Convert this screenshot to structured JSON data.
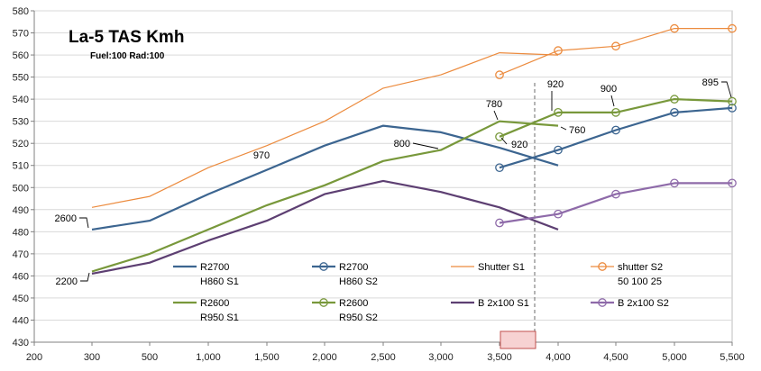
{
  "chart_data": {
    "type": "line",
    "title": "La-5 TAS Kmh",
    "subtitle": "Fuel:100 Rad:100",
    "xlabel": "",
    "ylabel": "",
    "xlim": [
      200,
      5500
    ],
    "ylim": [
      430,
      580
    ],
    "x_ticks": [
      200,
      300,
      500,
      1000,
      1500,
      2000,
      2500,
      3000,
      3500,
      4000,
      4500,
      5000,
      5500
    ],
    "x_tick_labels": [
      "200",
      "300",
      "500",
      "1,000",
      "1,500",
      "2,000",
      "2,500",
      "3,000",
      "3,500",
      "4,000",
      "4,500",
      "5,000",
      "5,500"
    ],
    "y_ticks": [
      430,
      440,
      450,
      460,
      470,
      480,
      490,
      500,
      510,
      520,
      530,
      540,
      550,
      560,
      570,
      580
    ],
    "grid": true,
    "marker_line_x": 3800,
    "series": [
      {
        "name": "R2700\nH860 S1",
        "color": "#3c6590",
        "width": 2.2,
        "marker": false,
        "points": [
          [
            300,
            481
          ],
          [
            500,
            485
          ],
          [
            1000,
            497
          ],
          [
            1500,
            508
          ],
          [
            2000,
            519
          ],
          [
            2500,
            528
          ],
          [
            3000,
            525
          ],
          [
            3500,
            518
          ],
          [
            4000,
            510
          ]
        ]
      },
      {
        "name": "R2700\nH860 S2",
        "color": "#3c6590",
        "width": 2.2,
        "marker": true,
        "points": [
          [
            3500,
            509
          ],
          [
            4000,
            517
          ],
          [
            4500,
            526
          ],
          [
            5000,
            534
          ],
          [
            5500,
            536
          ]
        ]
      },
      {
        "name": "Shutter S1",
        "color": "#ec8b3e",
        "width": 1.2,
        "marker": false,
        "points": [
          [
            300,
            491
          ],
          [
            500,
            496
          ],
          [
            1000,
            509
          ],
          [
            1500,
            519
          ],
          [
            2000,
            530
          ],
          [
            2500,
            545
          ],
          [
            3000,
            551
          ],
          [
            3500,
            561
          ],
          [
            4000,
            560
          ]
        ]
      },
      {
        "name": "shutter S2\n50 100 25",
        "color": "#ec8b3e",
        "width": 1.2,
        "marker": true,
        "points": [
          [
            3500,
            551
          ],
          [
            4000,
            562
          ],
          [
            4500,
            564
          ],
          [
            5000,
            572
          ],
          [
            5500,
            572
          ]
        ]
      },
      {
        "name": "R2600\nR950 S1",
        "color": "#78983b",
        "width": 2.2,
        "marker": false,
        "points": [
          [
            300,
            462
          ],
          [
            500,
            470
          ],
          [
            1000,
            481
          ],
          [
            1500,
            492
          ],
          [
            2000,
            501
          ],
          [
            2500,
            512
          ],
          [
            3000,
            517
          ],
          [
            3500,
            530
          ],
          [
            4000,
            528
          ]
        ]
      },
      {
        "name": "R2600\nR950 S2",
        "color": "#78983b",
        "width": 2.2,
        "marker": true,
        "points": [
          [
            3500,
            523
          ],
          [
            4000,
            534
          ],
          [
            4500,
            534
          ],
          [
            5000,
            540
          ],
          [
            5500,
            539
          ]
        ]
      },
      {
        "name": "B 2x100 S1",
        "color": "#5d3f72",
        "width": 2.2,
        "marker": false,
        "points": [
          [
            300,
            461
          ],
          [
            500,
            466
          ],
          [
            1000,
            476
          ],
          [
            1500,
            485
          ],
          [
            2000,
            497
          ],
          [
            2500,
            503
          ],
          [
            3000,
            498
          ],
          [
            3500,
            491
          ],
          [
            4000,
            481
          ]
        ]
      },
      {
        "name": "B 2x100 S2",
        "color": "#8e6aa9",
        "width": 2.2,
        "marker": true,
        "points": [
          [
            3500,
            484
          ],
          [
            4000,
            488
          ],
          [
            4500,
            497
          ],
          [
            5000,
            502
          ],
          [
            5500,
            502
          ]
        ]
      }
    ],
    "annotations": [
      {
        "text": "2600",
        "x": 300,
        "y": 481
      },
      {
        "text": "2200",
        "x": 300,
        "y": 461
      },
      {
        "text": "970",
        "x": 1500,
        "y": 508
      },
      {
        "text": "800",
        "x": 3000,
        "y": 517
      },
      {
        "text": "780",
        "x": 3500,
        "y": 530
      },
      {
        "text": "920",
        "x": 3500,
        "y": 518
      },
      {
        "text": "920",
        "x": 4000,
        "y": 534
      },
      {
        "text": "760",
        "x": 4000,
        "y": 528
      },
      {
        "text": "900",
        "x": 4500,
        "y": 534
      },
      {
        "text": "895",
        "x": 5500,
        "y": 539
      }
    ]
  }
}
